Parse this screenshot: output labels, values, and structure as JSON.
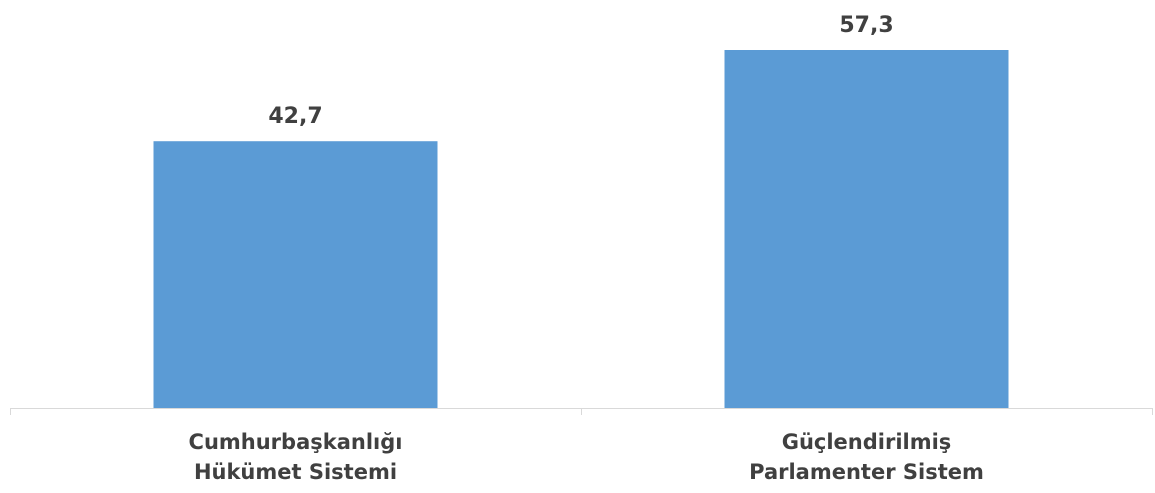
{
  "chart_data": {
    "type": "bar",
    "categories": [
      [
        "Cumhurbaşkanlığı",
        "Hükümet Sistemi"
      ],
      [
        "Güçlendirilmiş",
        "Parlamenter Sistem"
      ]
    ],
    "values": [
      42.7,
      57.3
    ],
    "value_labels": [
      "42,7",
      "57,3"
    ],
    "title": "",
    "xlabel": "",
    "ylabel": "",
    "ylim": [
      0,
      60
    ],
    "grid": false,
    "legend": "none",
    "colors": {
      "bar": "#5B9BD5",
      "axis": "#D9D9D9",
      "text": "#404040"
    }
  }
}
